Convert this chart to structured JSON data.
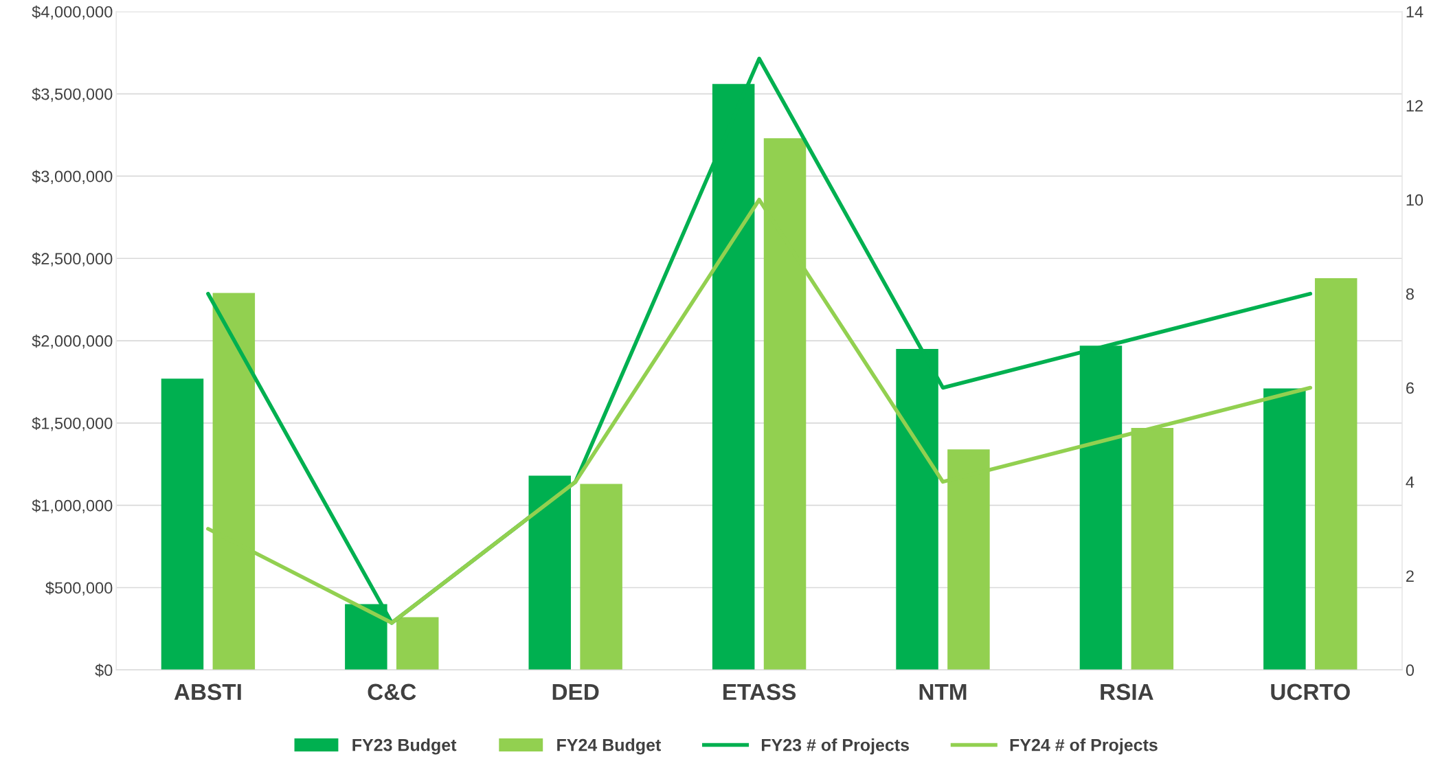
{
  "chart_data": {
    "type": "bar",
    "categories": [
      "ABSTI",
      "C&C",
      "DED",
      "ETASS",
      "NTM",
      "RSIA",
      "UCRTO"
    ],
    "series": [
      {
        "name": "FY23 Budget",
        "color": "#00b050",
        "values": [
          1770000,
          400000,
          1180000,
          3560000,
          1950000,
          1970000,
          1710000
        ]
      },
      {
        "name": "FY24 Budget",
        "color": "#92d050",
        "values": [
          2290000,
          320000,
          1130000,
          3230000,
          1340000,
          1470000,
          2380000
        ]
      },
      {
        "name": "FY23 # of Projects",
        "type": "line",
        "axis": "y2",
        "color": "#00b050",
        "values": [
          8,
          1,
          4,
          13,
          6,
          7,
          8
        ]
      },
      {
        "name": "FY24 # of Projects",
        "type": "line",
        "axis": "y2",
        "color": "#92d050",
        "values": [
          3,
          1,
          4,
          10,
          4,
          5,
          6
        ]
      }
    ],
    "ylim": [
      0,
      4000000
    ],
    "yticks": [
      {
        "value": 0,
        "label": "$0"
      },
      {
        "value": 500000,
        "label": "$500,000"
      },
      {
        "value": 1000000,
        "label": "$1,000,000"
      },
      {
        "value": 1500000,
        "label": "$1,500,000"
      },
      {
        "value": 2000000,
        "label": "$2,000,000"
      },
      {
        "value": 2500000,
        "label": "$2,500,000"
      },
      {
        "value": 3000000,
        "label": "$3,000,000"
      },
      {
        "value": 3500000,
        "label": "$3,500,000"
      },
      {
        "value": 4000000,
        "label": "$4,000,000"
      }
    ],
    "y2lim": [
      0,
      14
    ],
    "y2ticks": [
      0,
      2,
      4,
      6,
      8,
      10,
      12,
      14
    ],
    "grid": "y",
    "legend": "bottom",
    "marker": "none",
    "line_style": "solid"
  }
}
